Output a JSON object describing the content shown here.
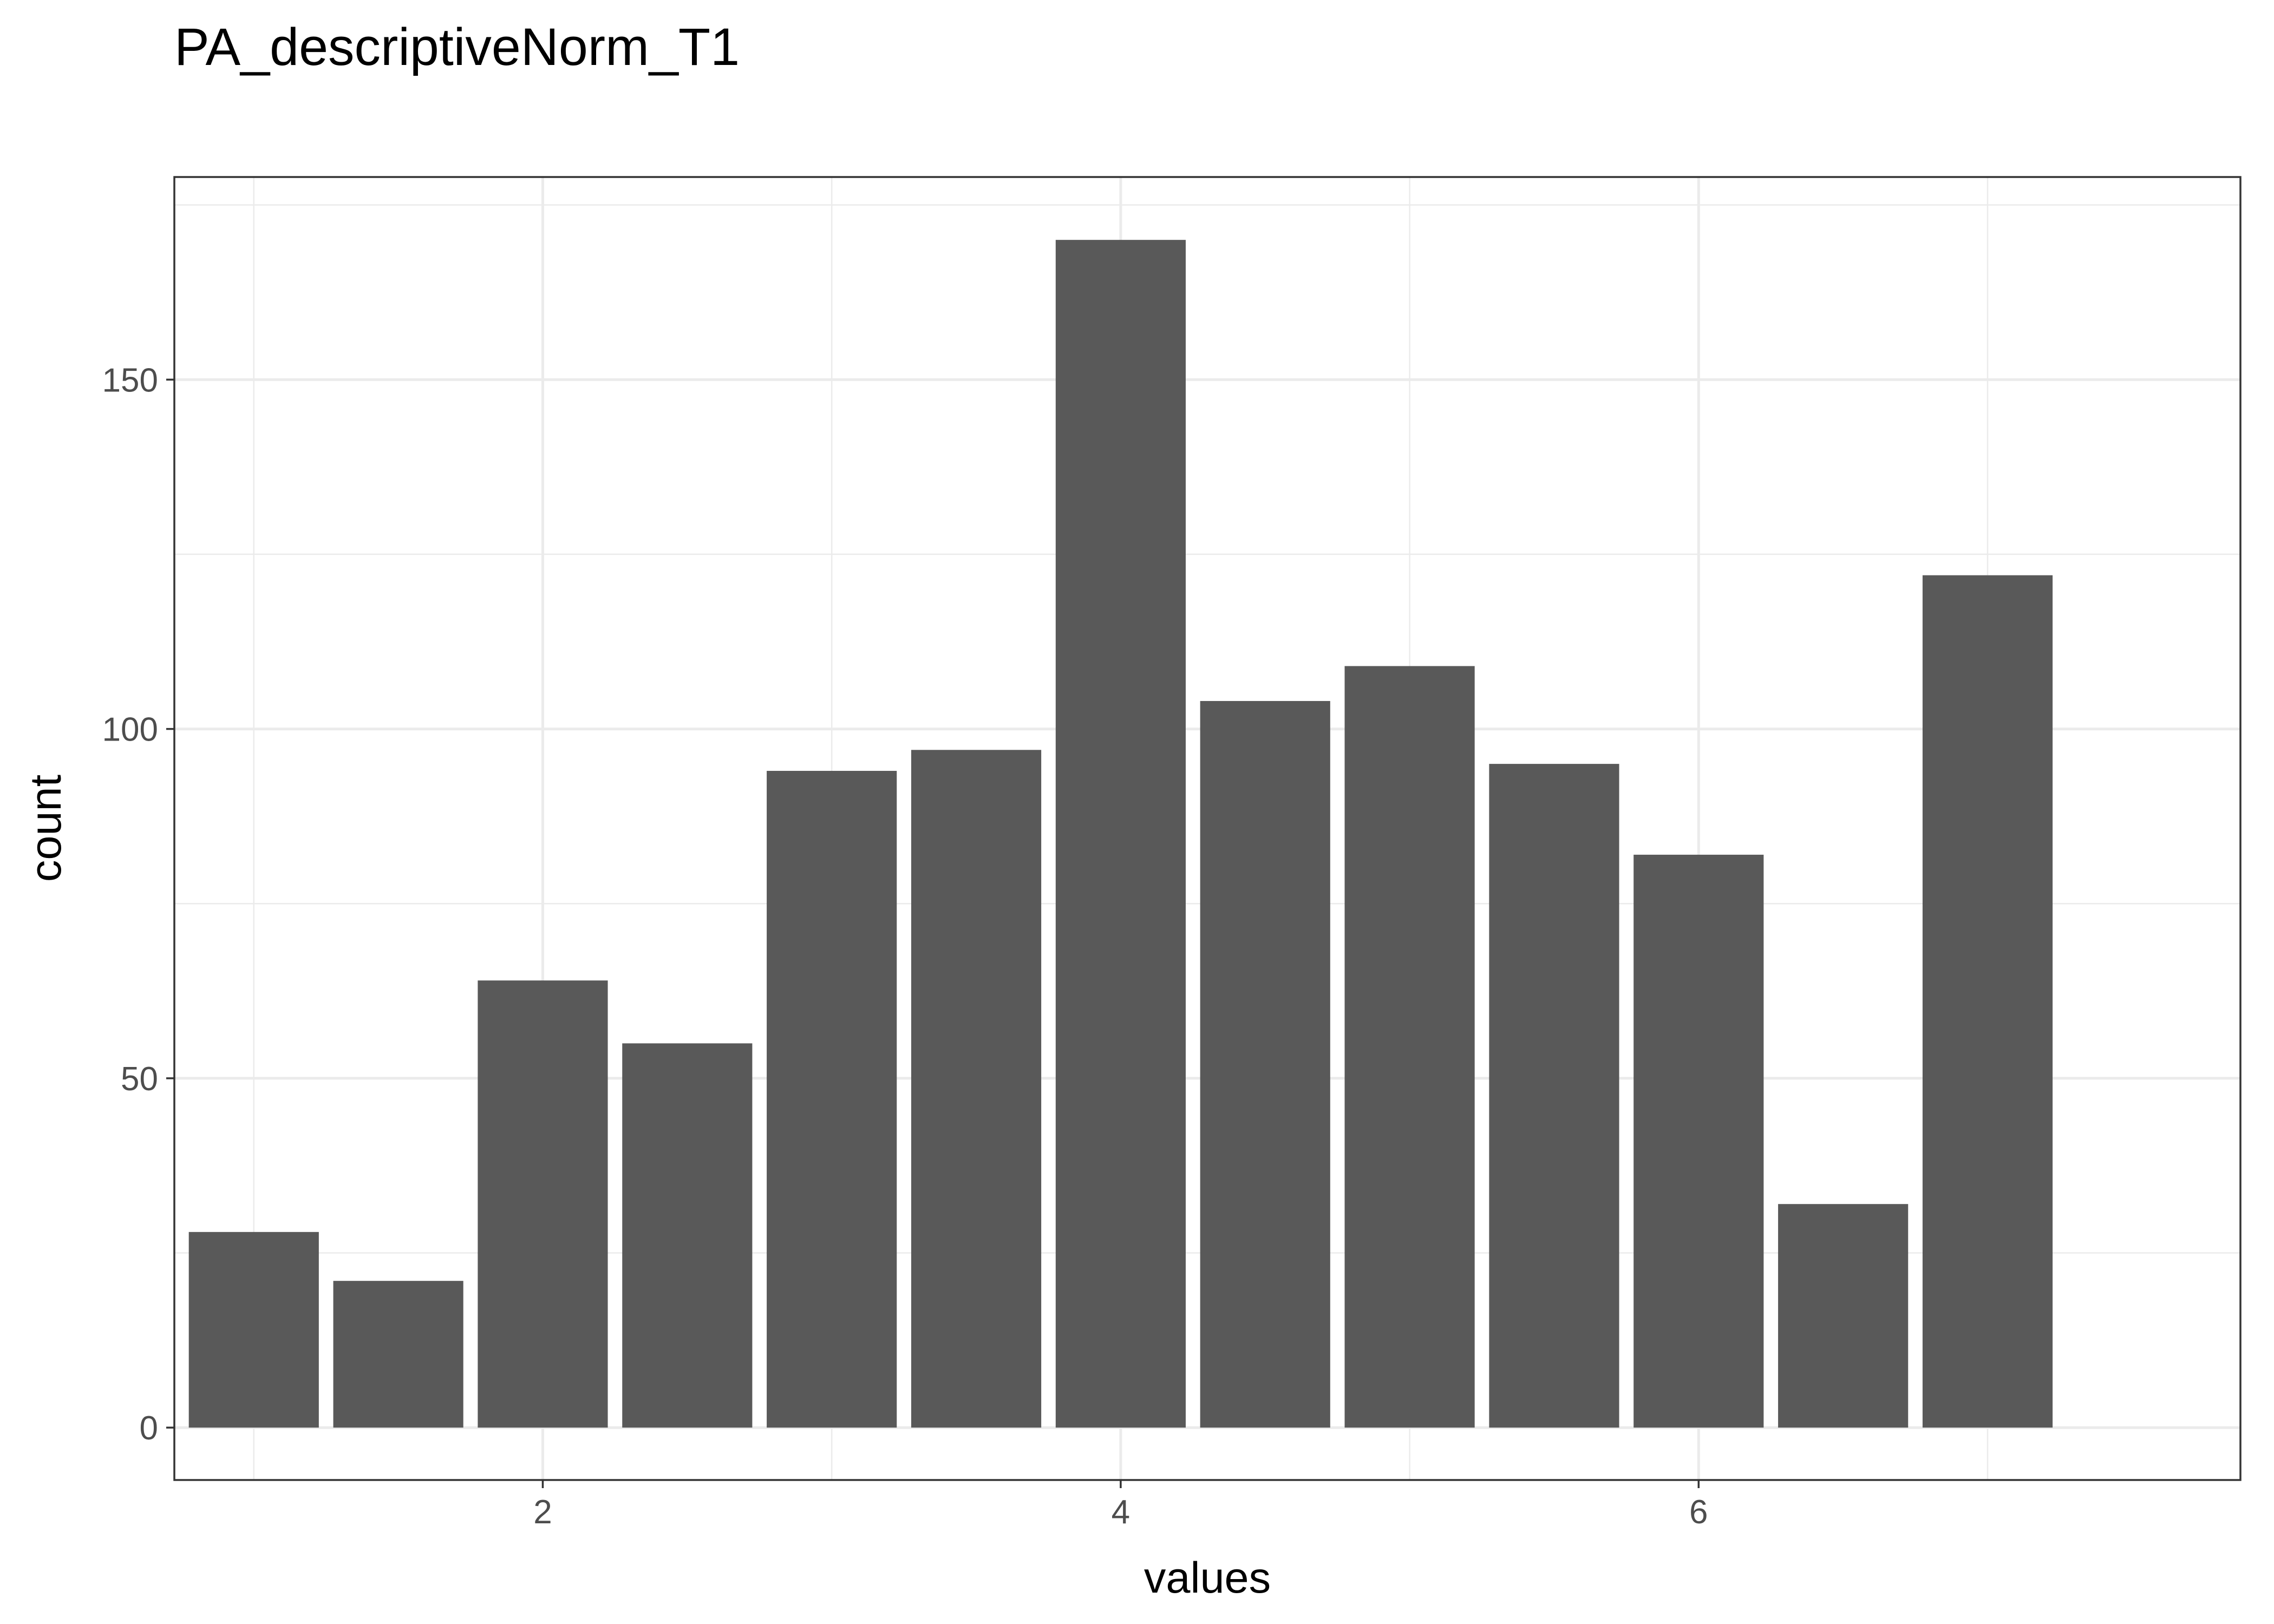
{
  "chart_data": {
    "type": "bar",
    "title": "PA_descriptiveNorm_T1",
    "xlabel": "values",
    "ylabel": "count",
    "xlim": [
      0.725,
      7.875
    ],
    "ylim": [
      -7.5,
      179
    ],
    "bar_width": 0.45,
    "x": [
      1.0,
      1.5,
      2.0,
      2.5,
      3.0,
      3.5,
      4.0,
      4.5,
      5.0,
      5.5,
      6.0,
      6.5,
      7.0
    ],
    "values": [
      28,
      21,
      64,
      55,
      94,
      97,
      170,
      104,
      109,
      95,
      82,
      32,
      122
    ],
    "x_ticks": [
      2,
      4,
      6
    ],
    "x_tick_labels": [
      "2",
      "4",
      "6"
    ],
    "x_minor_ticks": [
      1,
      3,
      5,
      7
    ],
    "y_ticks": [
      0,
      50,
      100,
      150
    ],
    "y_tick_labels": [
      "0",
      "50",
      "100",
      "150"
    ],
    "y_minor_ticks": [
      25,
      75,
      125,
      175
    ],
    "grid": true,
    "colors": {
      "bar": "#595959",
      "grid": "#ebebeb",
      "panel_border": "#333333",
      "tick_label": "#4d4d4d",
      "text": "#000000",
      "background": "#ffffff"
    }
  }
}
